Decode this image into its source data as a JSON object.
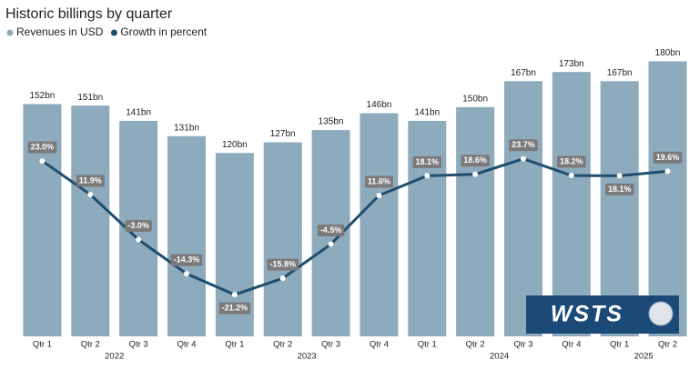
{
  "chart_data": {
    "type": "bar",
    "title": "Historic billings by quarter",
    "categories": [
      "Qtr 1",
      "Qtr 2",
      "Qtr 3",
      "Qtr 4",
      "Qtr 1",
      "Qtr 2",
      "Qtr 3",
      "Qtr 4",
      "Qtr 1",
      "Qtr 2",
      "Qtr 3",
      "Qtr 4",
      "Qtr 1",
      "Qtr 2"
    ],
    "category_groups": [
      "2022",
      "2023",
      "2024",
      "2025"
    ],
    "series": [
      {
        "name": "Revenues in USD",
        "type": "bar",
        "color": "#8eabbe",
        "values": [
          152,
          151,
          141,
          131,
          120,
          127,
          135,
          146,
          141,
          150,
          167,
          173,
          167,
          180
        ],
        "value_labels": [
          "152bn",
          "151bn",
          "141bn",
          "131bn",
          "120bn",
          "127bn",
          "135bn",
          "146bn",
          "141bn",
          "150bn",
          "167bn",
          "173bn",
          "167bn",
          "180bn"
        ]
      },
      {
        "name": "Growth in percent",
        "type": "line",
        "axis": "y2",
        "color": "#1f4e6e",
        "values": [
          23.0,
          11.9,
          -3.0,
          -14.3,
          -21.2,
          -15.8,
          -4.5,
          11.6,
          18.1,
          18.6,
          23.7,
          18.2,
          18.1,
          19.6
        ],
        "value_labels": [
          "23.0%",
          "11.9%",
          "-3.0%",
          "-14.3%",
          "-21.2%",
          "-15.8%",
          "-4.5%",
          "11.6%",
          "18.1%",
          "18.6%",
          "23.7%",
          "18.2%",
          "18.1%",
          "19.6%"
        ]
      }
    ],
    "ylim": [
      0,
      185
    ],
    "y2lim": [
      -35,
      58.5
    ],
    "grid": false
  },
  "logo": "WSTS"
}
